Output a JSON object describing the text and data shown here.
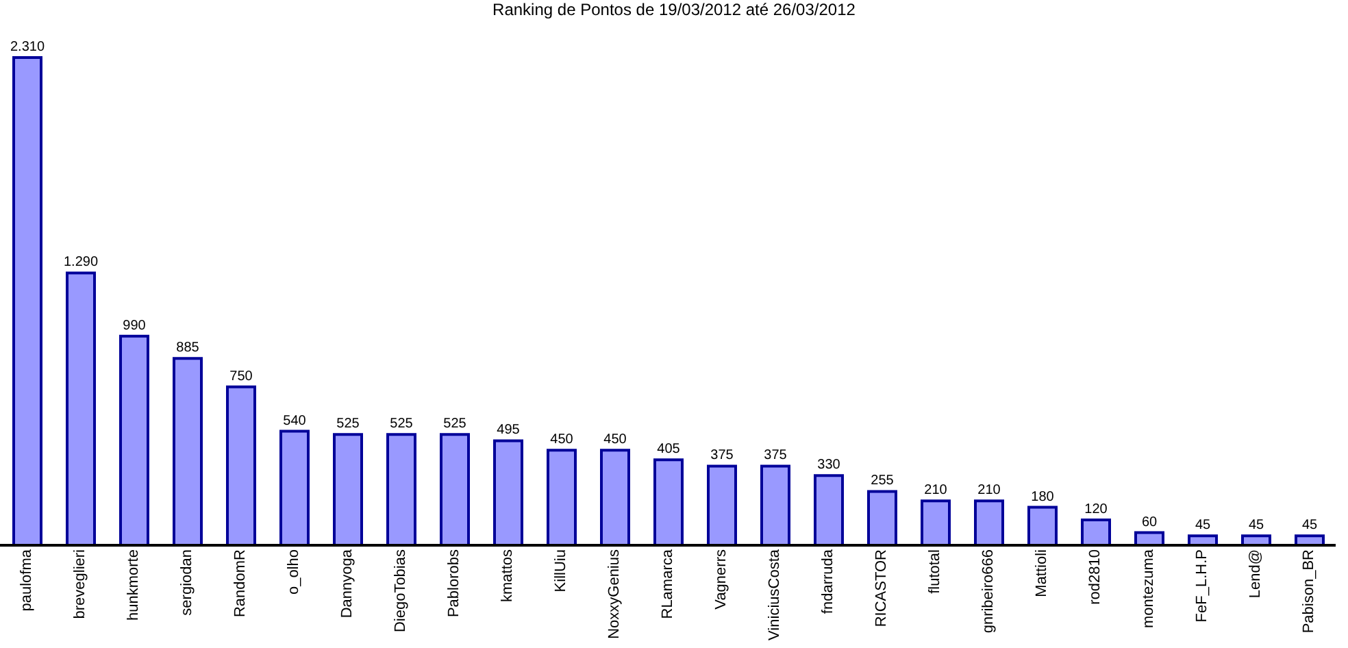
{
  "chart_data": {
    "type": "bar",
    "title": "Ranking de Pontos de 19/03/2012 até 26/03/2012",
    "categories": [
      "paulofma",
      "breveglieri",
      "hunkmorte",
      "sergiodan",
      "RandomR",
      "o_olho",
      "Dannyoga",
      "DiegoTobias",
      "Pablorobs",
      "kmattos",
      "KillUiu",
      "NoxxyGenius",
      "RLamarca",
      "Vagnerrs",
      "ViniciusCosta",
      "fndarruda",
      "RICASTOR",
      "flutotal",
      "gnribeiro666",
      "Mattioli",
      "rod2810",
      "montezuma",
      "FeF_L.H.P",
      "Lend@",
      "Pabison_BR"
    ],
    "values": [
      2310,
      1290,
      990,
      885,
      750,
      540,
      525,
      525,
      525,
      495,
      450,
      450,
      405,
      375,
      375,
      330,
      255,
      210,
      210,
      180,
      120,
      60,
      45,
      45,
      45
    ],
    "value_labels": [
      "2.310",
      "1.290",
      "990",
      "885",
      "750",
      "540",
      "525",
      "525",
      "525",
      "495",
      "450",
      "450",
      "405",
      "375",
      "375",
      "330",
      "255",
      "210",
      "210",
      "180",
      "120",
      "60",
      "45",
      "45",
      "45"
    ],
    "color": "#9999ff",
    "tick_labels": "x"
  }
}
